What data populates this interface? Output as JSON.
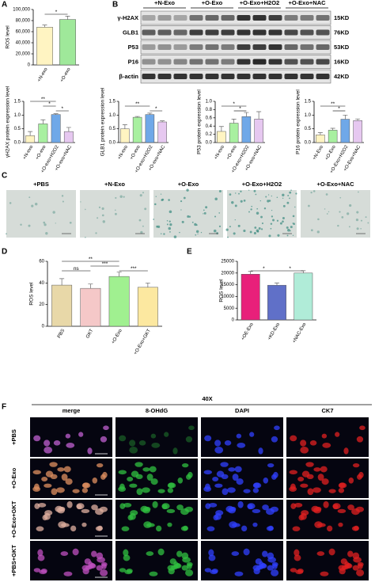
{
  "panel_labels": [
    "A",
    "B",
    "C",
    "D",
    "E",
    "F"
  ],
  "chart_data": [
    {
      "type": "bar",
      "ylabel": "ROS level",
      "categories": [
        "+N-exo",
        "+O-exo"
      ],
      "values": [
        68000,
        82000
      ],
      "errors": [
        4000,
        6000
      ],
      "colors": [
        "#fff4c2",
        "#9fe89a"
      ],
      "ylim": [
        0,
        100000
      ],
      "yticks": [
        0,
        {
          "value": 20000,
          "label": "20,000"
        },
        {
          "value": 40000,
          "label": "40,000"
        },
        {
          "value": 60000,
          "label": "60,000"
        },
        {
          "value": 80000,
          "label": "80,000"
        },
        {
          "value": 100000,
          "label": "100,000"
        }
      ],
      "annotations": [
        "*"
      ]
    },
    {
      "type": "bar",
      "ylabel": "γH2AX protein expression level",
      "categories": [
        "+N-exo",
        "+O-exo",
        "+O-exo+H2O2",
        "+O-exo+NAC"
      ],
      "values": [
        0.25,
        0.68,
        1.02,
        0.4
      ],
      "errors": [
        0.15,
        0.15,
        0.03,
        0.15
      ],
      "colors": [
        "#fff4c2",
        "#a8f0a0",
        "#6fa8e8",
        "#e6c8f0"
      ],
      "ylim": [
        0,
        1.5
      ],
      "yticks": [
        {
          "value": 0,
          "label": "0.0"
        },
        0.5,
        {
          "value": 1,
          "label": "1.0"
        },
        1.5
      ],
      "annotations": [
        "**",
        "*",
        "*"
      ]
    },
    {
      "type": "bar",
      "ylabel": "GLB1 protein expression level",
      "categories": [
        "+N-exo",
        "+O-exo",
        "+O-exo+H2O2",
        "+O-exo+NAC"
      ],
      "values": [
        0.5,
        0.92,
        1.02,
        0.75
      ],
      "errors": [
        0.15,
        0.03,
        0.05,
        0.04
      ],
      "colors": [
        "#fff4c2",
        "#a8f0a0",
        "#6fa8e8",
        "#e6c8f0"
      ],
      "ylim": [
        0,
        1.5
      ],
      "yticks": [
        {
          "value": 0,
          "label": "0.0"
        },
        0.5,
        {
          "value": 1,
          "label": "1.0"
        },
        1.5
      ],
      "annotations": [
        "**",
        "*"
      ]
    },
    {
      "type": "bar",
      "ylabel": "P53 protein expression level",
      "categories": [
        "+N-exo",
        "+O-exo",
        "+O-exo+H2O2",
        "+O-exo+NAC"
      ],
      "values": [
        0.27,
        0.47,
        0.63,
        0.57
      ],
      "errors": [
        0.12,
        0.1,
        0.1,
        0.18
      ],
      "colors": [
        "#fff4c2",
        "#a8f0a0",
        "#6fa8e8",
        "#e6c8f0"
      ],
      "ylim": [
        0,
        1
      ],
      "yticks": [
        {
          "value": 0,
          "label": "0.0"
        },
        0.2,
        0.4,
        0.6,
        0.8,
        {
          "value": 1,
          "label": "1.0"
        }
      ],
      "annotations": [
        "*",
        "*"
      ]
    },
    {
      "type": "bar",
      "ylabel": "P16 protein expression level",
      "categories": [
        "+N-Exo",
        "+O-Exo",
        "+O-Exo+H2O2",
        "+O-Exo+NAC"
      ],
      "values": [
        0.28,
        0.45,
        0.85,
        0.8
      ],
      "errors": [
        0.08,
        0.07,
        0.15,
        0.06
      ],
      "colors": [
        "#fff4c2",
        "#a8f0a0",
        "#6fa8e8",
        "#e6c8f0"
      ],
      "ylim": [
        0,
        1.5
      ],
      "yticks": [
        {
          "value": 0,
          "label": "0.0"
        },
        0.5,
        {
          "value": 1,
          "label": "1.0"
        },
        1.5
      ],
      "annotations": [
        "**",
        "*"
      ]
    },
    {
      "type": "bar",
      "ylabel": "ROS level",
      "categories": [
        "PBS",
        "GKT",
        "+O-Exo",
        "+O-Exo+GKT"
      ],
      "values": [
        38,
        35,
        46,
        36
      ],
      "errors": [
        6,
        4,
        4,
        4
      ],
      "colors": [
        "#e8d8a8",
        "#f5c8c8",
        "#a0f090",
        "#fce8a0"
      ],
      "ylim": [
        0,
        60
      ],
      "yticks": [
        0,
        20,
        40,
        60
      ],
      "annotations": [
        "**",
        "ns",
        "***",
        "***"
      ]
    },
    {
      "type": "bar",
      "ylabel": "ROS level",
      "categories": [
        "+OE-Exo",
        "+KD-Exo",
        "+NAC-Exo"
      ],
      "values": [
        19500,
        14800,
        20000
      ],
      "errors": [
        1200,
        1000,
        1000
      ],
      "colors": [
        "#e8207a",
        "#6070c8",
        "#b0ecd8"
      ],
      "ylim": [
        0,
        25000
      ],
      "yticks": [
        0,
        5000,
        10000,
        15000,
        20000,
        25000
      ],
      "annotations": [
        "*",
        "*"
      ]
    }
  ],
  "blot": {
    "groups": [
      "+N-Exo",
      "+O-Exo",
      "+O-Exo+H2O2",
      "+O-Exo+NAC"
    ],
    "bands": [
      "γ-H2AX",
      "GLB1",
      "P53",
      "P16",
      "β-actin"
    ],
    "sizes": [
      "15KD",
      "76KD",
      "53KD",
      "16KD",
      "42KD"
    ]
  },
  "staining": {
    "labels": [
      "+PBS",
      "+N-Exo",
      "+O-Exo",
      "+O-Exo+H2O2",
      "+O-Exo+NAC"
    ]
  },
  "fluorescence": {
    "magnification": "40X",
    "columns": [
      "merge",
      "8-OHdG",
      "DAPI",
      "CK7"
    ],
    "rows": [
      "+PBS",
      "+O-Exo",
      "+O-Exo+GKT",
      "+PBS+GKT"
    ]
  }
}
